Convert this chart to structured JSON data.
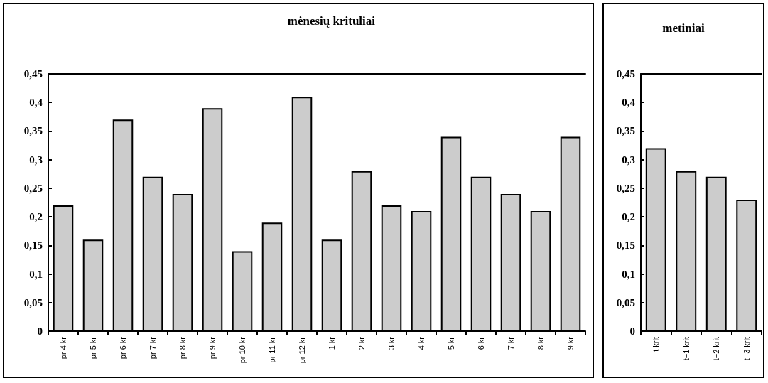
{
  "chart_data": [
    {
      "type": "bar",
      "title": "mėnesių krituliai",
      "categories": [
        "pr 4 kr",
        "pr 5 kr",
        "pr 6 kr",
        "pr 7 kr",
        "pr 8 kr",
        "pr 9 kr",
        "pr 10 kr",
        "pr 11 kr",
        "pr 12 kr",
        "1 kr",
        "2 kr",
        "3 kr",
        "4 kr",
        "5 kr",
        "6 kr",
        "7 kr",
        "8 kr",
        "9 kr"
      ],
      "values": [
        0.22,
        0.16,
        0.37,
        0.27,
        0.24,
        0.39,
        0.14,
        0.19,
        0.41,
        0.16,
        0.28,
        0.22,
        0.21,
        0.34,
        0.27,
        0.24,
        0.21,
        0.34
      ],
      "color": "#cccccc",
      "ylim": [
        0,
        0.45
      ],
      "yticks": [
        0,
        {
          "value": 0.05,
          "label": "0,05"
        },
        {
          "value": 0.1,
          "label": "0,1"
        },
        {
          "value": 0.15,
          "label": "0,15"
        },
        {
          "value": 0.2,
          "label": "0,2"
        },
        {
          "value": 0.25,
          "label": "0,25"
        },
        {
          "value": 0.3,
          "label": "0,3"
        },
        {
          "value": 0.35,
          "label": "0,35"
        },
        {
          "value": 0.4,
          "label": "0,4"
        },
        {
          "value": 0.45,
          "label": "0,45"
        }
      ],
      "ref_lines": [
        {
          "axis": "y",
          "value": 0.26,
          "line_style": "dashed",
          "color": "#000000"
        }
      ],
      "grid": false
    },
    {
      "type": "bar",
      "title": "metiniai",
      "categories": [
        "t krit",
        "t−1 krit",
        "t−2 krit",
        "t−3 krit"
      ],
      "values": [
        0.32,
        0.28,
        0.27,
        0.23
      ],
      "color": "#cccccc",
      "ylim": [
        0,
        0.45
      ],
      "yticks": [
        0,
        {
          "value": 0.05,
          "label": "0,05"
        },
        {
          "value": 0.1,
          "label": "0,1"
        },
        {
          "value": 0.15,
          "label": "0,15"
        },
        {
          "value": 0.2,
          "label": "0,2"
        },
        {
          "value": 0.25,
          "label": "0,25"
        },
        {
          "value": 0.3,
          "label": "0,3"
        },
        {
          "value": 0.35,
          "label": "0,35"
        },
        {
          "value": 0.4,
          "label": "0,4"
        },
        {
          "value": 0.45,
          "label": "0,45"
        }
      ],
      "ref_lines": [
        {
          "axis": "y",
          "value": 0.26,
          "line_style": "dashed",
          "color": "#000000"
        }
      ],
      "grid": false
    }
  ]
}
